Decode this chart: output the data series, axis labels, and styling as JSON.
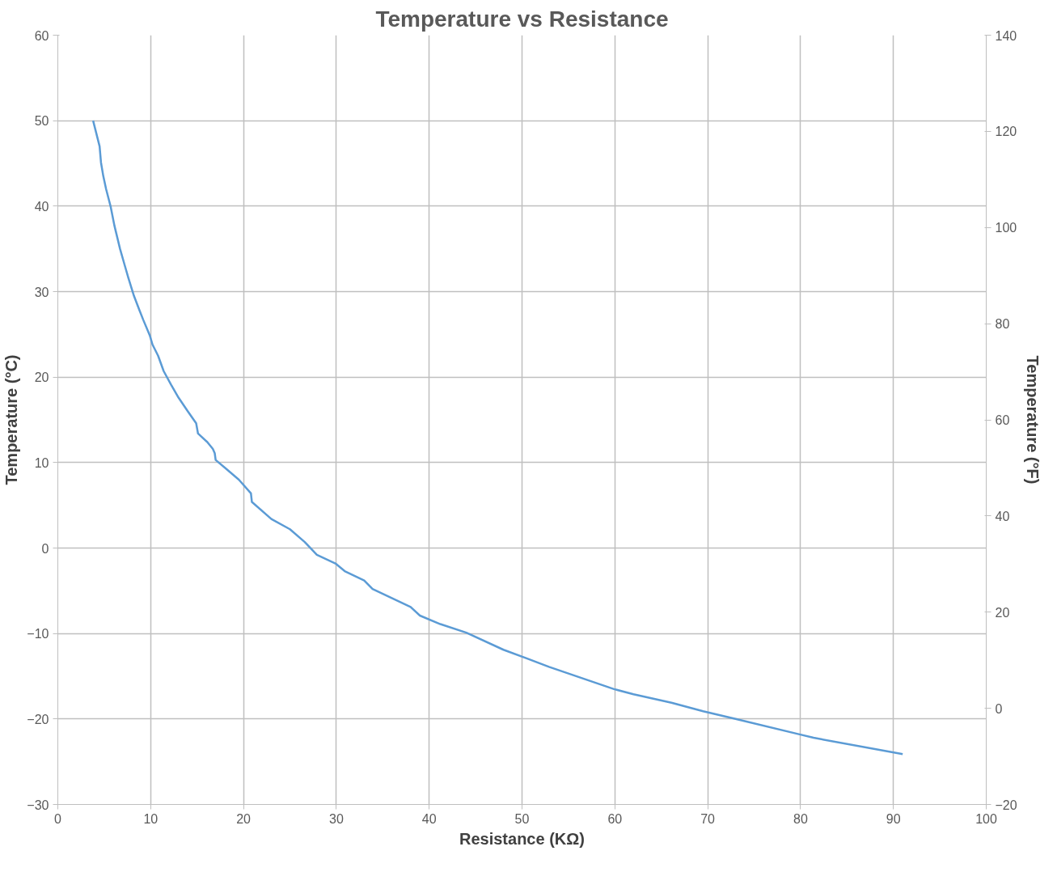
{
  "chart_data": {
    "type": "line",
    "title": "Temperature vs Resistance",
    "xlabel": "Resistance (KΩ)",
    "ylabel": "Temperature (°C)",
    "y2label": "Temperature (°F)",
    "xlim": [
      0,
      100
    ],
    "xticks": [
      0,
      10,
      20,
      30,
      40,
      50,
      60,
      70,
      80,
      90,
      100
    ],
    "ylim": [
      -30,
      60
    ],
    "yticks": [
      -30,
      -20,
      -10,
      0,
      10,
      20,
      30,
      40,
      50,
      60
    ],
    "y2lim": [
      -20,
      140
    ],
    "y2ticks": [
      -20,
      0,
      20,
      40,
      60,
      80,
      100,
      120,
      140
    ],
    "grid": true,
    "marker": "none",
    "line_style": "solid",
    "series": [
      {
        "color": "#5b9bd5",
        "x": [
          3.8,
          4.5,
          4.65,
          4.9,
          5.2,
          5.7,
          6.1,
          6.3,
          6.7,
          7.2,
          7.6,
          8.2,
          8.8,
          9.2,
          9.9,
          10.2,
          10.8,
          11.4,
          12.2,
          13.0,
          14.0,
          14.9,
          15.1,
          16.1,
          16.7,
          16.9,
          17.0,
          18.1,
          19.5,
          20.8,
          20.9,
          23.0,
          25.0,
          26.6,
          27.9,
          29.9,
          30.9,
          33.0,
          33.9,
          38.0,
          39.0,
          41.2,
          44.0,
          48.0,
          50.5,
          52.9,
          59.9,
          62.0,
          66.1,
          69.5,
          73.0,
          79.9,
          81.4,
          91.0
        ],
        "values": [
          50,
          47,
          45.1,
          43.5,
          42,
          39.9,
          37.7,
          36.8,
          35,
          33.1,
          31.6,
          29.5,
          27.8,
          26.7,
          24.9,
          23.8,
          22.5,
          20.7,
          19.1,
          17.6,
          16,
          14.6,
          13.4,
          12.4,
          11.6,
          11.1,
          10.3,
          9.3,
          8.0,
          6.4,
          5.4,
          3.4,
          2.2,
          0.7,
          -0.8,
          -1.8,
          -2.7,
          -3.8,
          -4.8,
          -6.9,
          -7.9,
          -8.9,
          -9.9,
          -11.9,
          -12.9,
          -13.9,
          -16.5,
          -17.1,
          -18.1,
          -19.1,
          -20,
          -21.8,
          -22.2,
          -24.1
        ]
      }
    ]
  }
}
